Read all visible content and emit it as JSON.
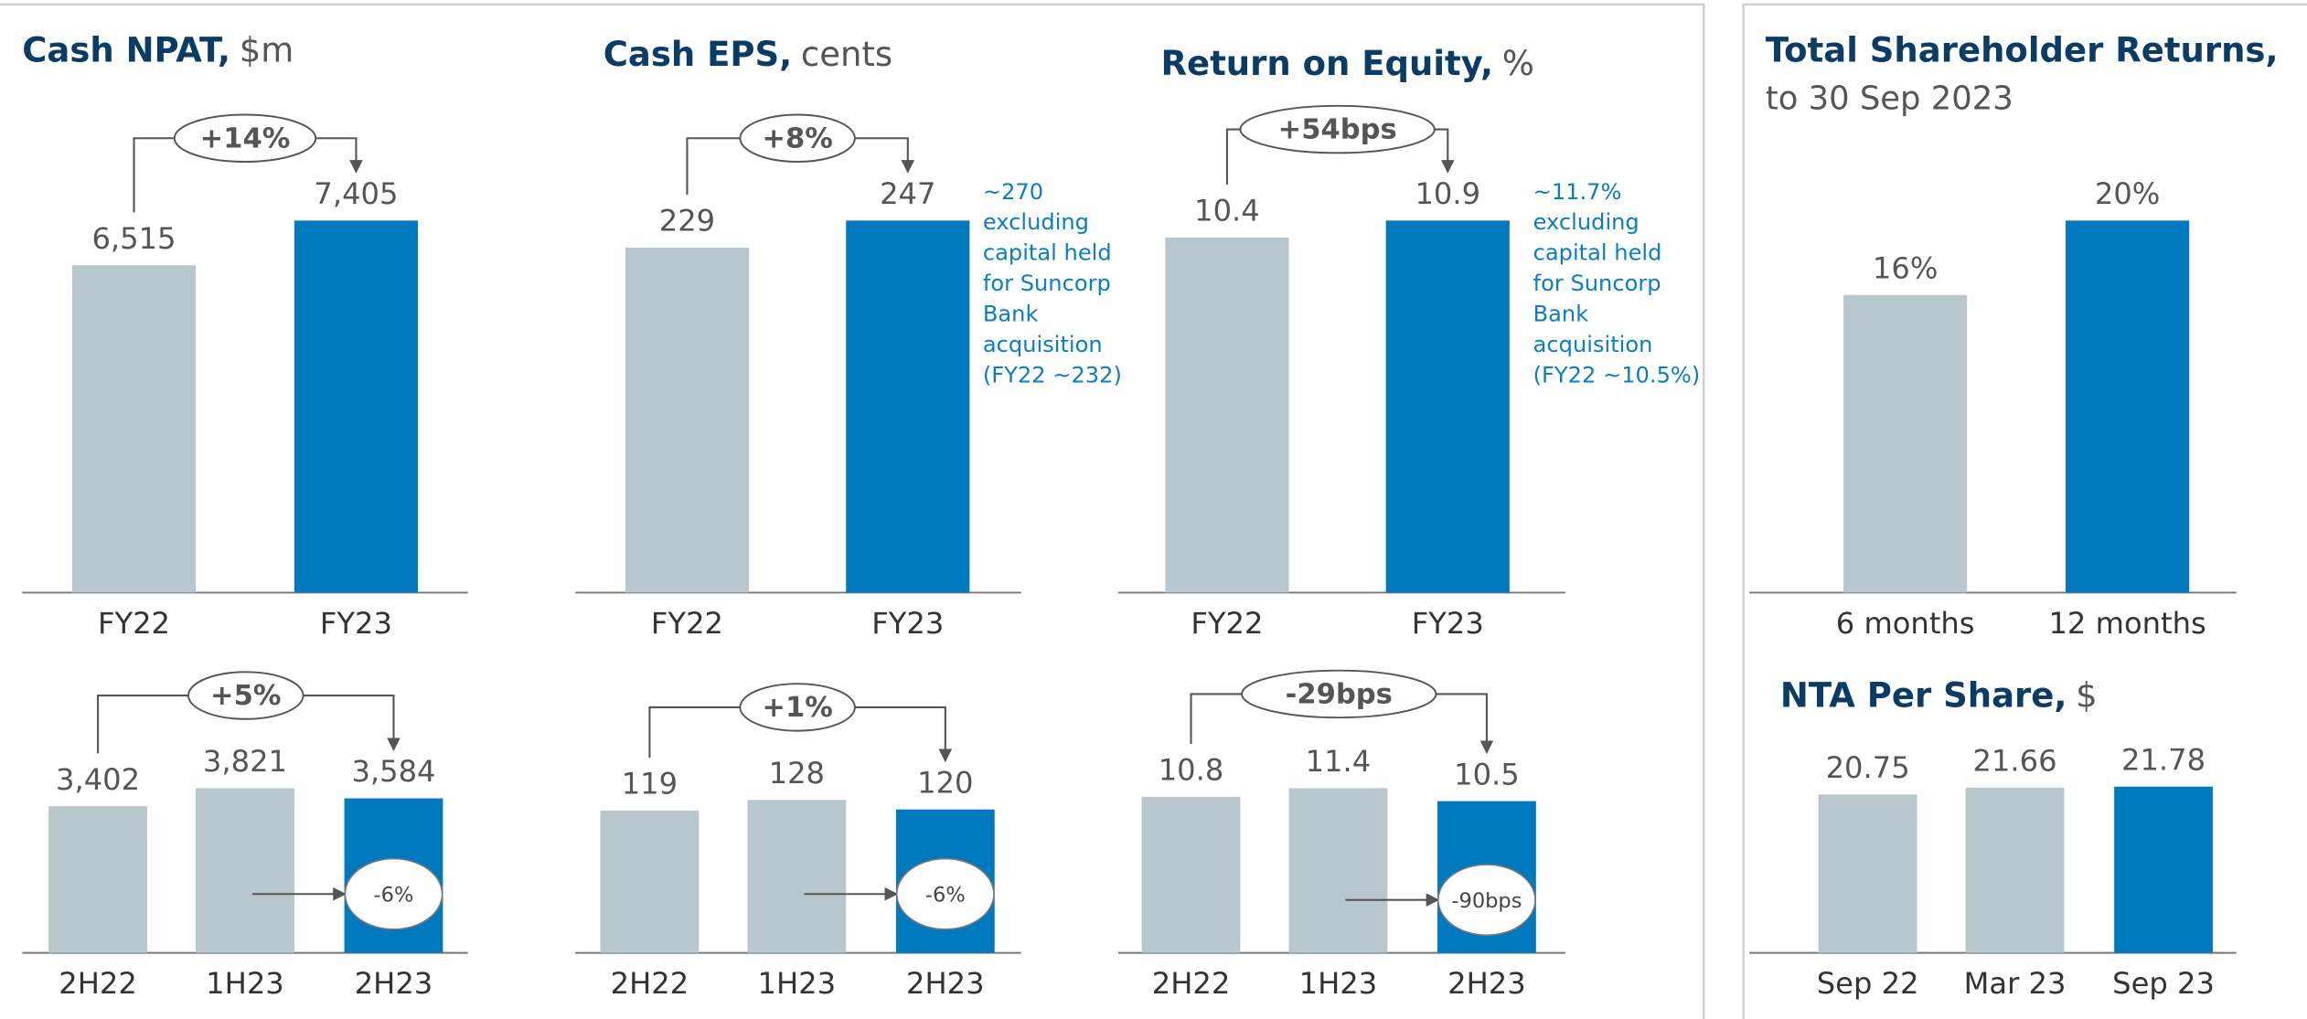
{
  "chart_data": [
    {
      "type": "bar",
      "title": "Cash NPAT,",
      "unit": "$m",
      "categories": [
        "FY22",
        "FY23"
      ],
      "values": [
        6515,
        7405
      ],
      "value_labels": [
        "6,515",
        "7,405"
      ],
      "colors": [
        "#b8c7ce",
        "#0079bf"
      ],
      "change_label": "+14%"
    },
    {
      "type": "bar",
      "title": "Cash EPS,",
      "unit": "cents",
      "categories": [
        "FY22",
        "FY23"
      ],
      "values": [
        229,
        247
      ],
      "colors": [
        "#b8c7ce",
        "#0079bf"
      ],
      "change_label": "+8%",
      "note": [
        "~270",
        "excluding",
        "capital held",
        "for Suncorp",
        "Bank",
        "acquisition",
        "(FY22 ~232)"
      ]
    },
    {
      "type": "bar",
      "title": "Return on Equity,",
      "unit": "%",
      "categories": [
        "FY22",
        "FY23"
      ],
      "values": [
        10.4,
        10.9
      ],
      "colors": [
        "#b8c7ce",
        "#0079bf"
      ],
      "change_label": "+54bps",
      "note": [
        "~11.7%",
        "excluding",
        "capital held",
        "for Suncorp",
        "Bank",
        "acquisition",
        "(FY22 ~10.5%)"
      ]
    },
    {
      "type": "bar",
      "title": "Total Shareholder Returns,",
      "subtitle": "to 30 Sep 2023",
      "categories": [
        "6 months",
        "12 months"
      ],
      "values": [
        16,
        20
      ],
      "value_labels": [
        "16%",
        "20%"
      ],
      "colors": [
        "#b8c7ce",
        "#0079bf"
      ]
    },
    {
      "type": "bar",
      "categories": [
        "2H22",
        "1H23",
        "2H23"
      ],
      "values": [
        3402,
        3821,
        3584
      ],
      "value_labels": [
        "3,402",
        "3,821",
        "3,584"
      ],
      "colors": [
        "#b8c7ce",
        "#b8c7ce",
        "#0079bf"
      ],
      "change_label": "+5%",
      "inner_label": "-6%"
    },
    {
      "type": "bar",
      "categories": [
        "2H22",
        "1H23",
        "2H23"
      ],
      "values": [
        119,
        128,
        120
      ],
      "colors": [
        "#b8c7ce",
        "#b8c7ce",
        "#0079bf"
      ],
      "change_label": "+1%",
      "inner_label": "-6%"
    },
    {
      "type": "bar",
      "categories": [
        "2H22",
        "1H23",
        "2H23"
      ],
      "values": [
        10.8,
        11.4,
        10.5
      ],
      "colors": [
        "#b8c7ce",
        "#b8c7ce",
        "#0079bf"
      ],
      "change_label": "-29bps",
      "inner_label": "-90bps"
    },
    {
      "type": "bar",
      "title": "NTA Per Share,",
      "unit": "$",
      "categories": [
        "Sep 22",
        "Mar 23",
        "Sep 23"
      ],
      "values": [
        20.75,
        21.66,
        21.78
      ],
      "colors": [
        "#b8c7ce",
        "#b8c7ce",
        "#0079bf"
      ]
    }
  ]
}
